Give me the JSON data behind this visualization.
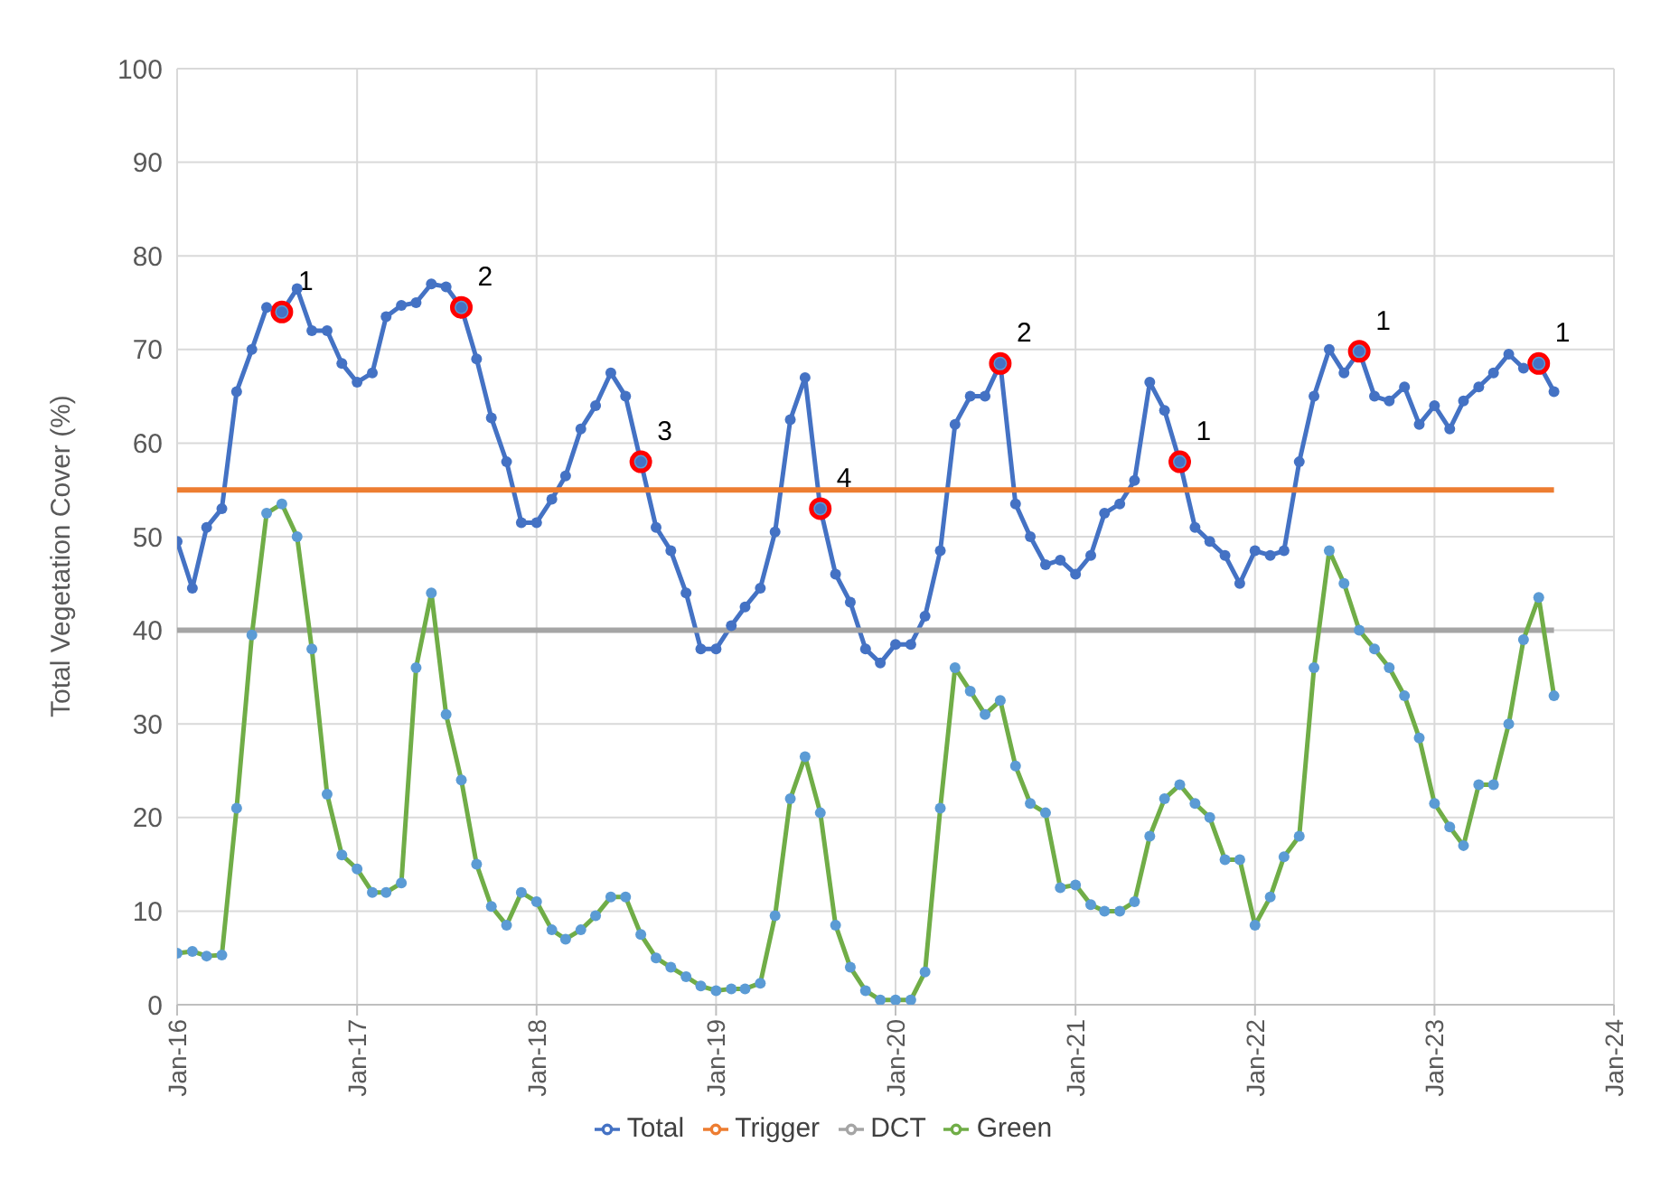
{
  "chart_data": {
    "type": "line",
    "ylabel": "Total Vegetation Cover (%)",
    "x": [
      "2016-01",
      "2016-02",
      "2016-03",
      "2016-04",
      "2016-05",
      "2016-06",
      "2016-07",
      "2016-08",
      "2016-09",
      "2016-10",
      "2016-11",
      "2016-12",
      "2017-01",
      "2017-02",
      "2017-03",
      "2017-04",
      "2017-05",
      "2017-06",
      "2017-07",
      "2017-08",
      "2017-09",
      "2017-10",
      "2017-11",
      "2017-12",
      "2018-01",
      "2018-02",
      "2018-03",
      "2018-04",
      "2018-05",
      "2018-06",
      "2018-07",
      "2018-08",
      "2018-09",
      "2018-10",
      "2018-11",
      "2018-12",
      "2019-01",
      "2019-02",
      "2019-03",
      "2019-04",
      "2019-05",
      "2019-06",
      "2019-07",
      "2019-08",
      "2019-09",
      "2019-10",
      "2019-11",
      "2019-12",
      "2020-01",
      "2020-02",
      "2020-03",
      "2020-04",
      "2020-05",
      "2020-06",
      "2020-07",
      "2020-08",
      "2020-09",
      "2020-10",
      "2020-11",
      "2020-12",
      "2021-01",
      "2021-02",
      "2021-03",
      "2021-04",
      "2021-05",
      "2021-06",
      "2021-07",
      "2021-08",
      "2021-09",
      "2021-10",
      "2021-11",
      "2021-12",
      "2022-01",
      "2022-02",
      "2022-03",
      "2022-04",
      "2022-05",
      "2022-06",
      "2022-07",
      "2022-08",
      "2022-09",
      "2022-10",
      "2022-11",
      "2022-12",
      "2023-01",
      "2023-02",
      "2023-03",
      "2023-04",
      "2023-05",
      "2023-06",
      "2023-07",
      "2023-08",
      "2023-09"
    ],
    "series": [
      {
        "name": "Total",
        "color": "#4472c4",
        "marker": "circle",
        "values": [
          49.5,
          44.5,
          51,
          53,
          65.5,
          70,
          74.5,
          74,
          76.5,
          72,
          72,
          68.5,
          66.5,
          67.5,
          73.5,
          74.7,
          75,
          77,
          76.7,
          74.5,
          69,
          62.7,
          58,
          51.5,
          51.5,
          54,
          56.5,
          61.5,
          64,
          67.5,
          65,
          58,
          51,
          48.5,
          44,
          38,
          38,
          40.5,
          42.5,
          44.5,
          50.5,
          62.5,
          67,
          53,
          46,
          43,
          38,
          36.5,
          38.5,
          38.5,
          41.5,
          48.5,
          62,
          65,
          65,
          68.5,
          53.5,
          50,
          47,
          47.5,
          46,
          48,
          52.5,
          53.5,
          56,
          66.5,
          63.5,
          58,
          51,
          49.5,
          48,
          45,
          48.5,
          48,
          48.5,
          58,
          65,
          70,
          67.5,
          69.8,
          65,
          64.5,
          66,
          62,
          64,
          61.5,
          64.5,
          66,
          67.5,
          69.5,
          68,
          68.5,
          65.5
        ]
      },
      {
        "name": "Trigger",
        "color": "#ed7d31",
        "marker": "none",
        "values": [
          55,
          55,
          55,
          55,
          55,
          55,
          55,
          55,
          55,
          55,
          55,
          55,
          55,
          55,
          55,
          55,
          55,
          55,
          55,
          55,
          55,
          55,
          55,
          55,
          55,
          55,
          55,
          55,
          55,
          55,
          55,
          55,
          55,
          55,
          55,
          55,
          55,
          55,
          55,
          55,
          55,
          55,
          55,
          55,
          55,
          55,
          55,
          55,
          55,
          55,
          55,
          55,
          55,
          55,
          55,
          55,
          55,
          55,
          55,
          55,
          55,
          55,
          55,
          55,
          55,
          55,
          55,
          55,
          55,
          55,
          55,
          55,
          55,
          55,
          55,
          55,
          55,
          55,
          55,
          55,
          55,
          55,
          55,
          55,
          55,
          55,
          55,
          55,
          55,
          55,
          55,
          55,
          55
        ]
      },
      {
        "name": "DCT",
        "color": "#a5a5a5",
        "marker": "none",
        "values": [
          40,
          40,
          40,
          40,
          40,
          40,
          40,
          40,
          40,
          40,
          40,
          40,
          40,
          40,
          40,
          40,
          40,
          40,
          40,
          40,
          40,
          40,
          40,
          40,
          40,
          40,
          40,
          40,
          40,
          40,
          40,
          40,
          40,
          40,
          40,
          40,
          40,
          40,
          40,
          40,
          40,
          40,
          40,
          40,
          40,
          40,
          40,
          40,
          40,
          40,
          40,
          40,
          40,
          40,
          40,
          40,
          40,
          40,
          40,
          40,
          40,
          40,
          40,
          40,
          40,
          40,
          40,
          40,
          40,
          40,
          40,
          40,
          40,
          40,
          40,
          40,
          40,
          40,
          40,
          40,
          40,
          40,
          40,
          40,
          40,
          40,
          40,
          40,
          40,
          40,
          40,
          40,
          40
        ]
      },
      {
        "name": "Green",
        "color": "#70ad47",
        "marker": "circle",
        "values": [
          5.5,
          5.7,
          5.2,
          5.3,
          21,
          39.5,
          52.5,
          53.5,
          50,
          38,
          22.5,
          16,
          14.5,
          12,
          12,
          13,
          36,
          44,
          31,
          24,
          15,
          10.5,
          8.5,
          12,
          11,
          8,
          7,
          8,
          9.5,
          11.5,
          11.5,
          7.5,
          5,
          4,
          3,
          2,
          1.5,
          1.7,
          1.7,
          2.3,
          9.5,
          22,
          26.5,
          20.5,
          8.5,
          4,
          1.5,
          0.5,
          0.5,
          0.5,
          3.5,
          21,
          36,
          33.5,
          31,
          32.5,
          25.5,
          21.5,
          20.5,
          12.5,
          12.8,
          10.7,
          10,
          10,
          11,
          18,
          22,
          23.5,
          21.5,
          20,
          15.5,
          15.5,
          8.5,
          11.5,
          15.8,
          18,
          36,
          48.5,
          45,
          40,
          38,
          36,
          33,
          28.5,
          21.5,
          19,
          17,
          23.5,
          23.5,
          30,
          39,
          43.5,
          33
        ]
      },
      {
        "type": "scatter",
        "color": "#ff0000",
        "marker": "circle",
        "x": [
          "2016-08",
          "2017-08",
          "2018-08",
          "2019-08",
          "2020-08",
          "2021-08",
          "2022-08",
          "2023-08"
        ],
        "values": [
          74,
          74.5,
          58,
          53,
          68.5,
          58,
          69.8,
          68.5
        ]
      }
    ],
    "annotations": [
      {
        "text": "1",
        "x": "2016-08",
        "y": 74
      },
      {
        "text": "2",
        "x": "2017-08",
        "y": 74.5
      },
      {
        "text": "3",
        "x": "2018-08",
        "y": 58
      },
      {
        "text": "4",
        "x": "2019-08",
        "y": 53
      },
      {
        "text": "2",
        "x": "2020-08",
        "y": 68.5
      },
      {
        "text": "1",
        "x": "2021-08",
        "y": 58
      },
      {
        "text": "1",
        "x": "2022-08",
        "y": 69.8
      },
      {
        "text": "1",
        "x": "2023-08",
        "y": 68.5
      }
    ],
    "xlim": [
      "2016-01",
      "2024-01"
    ],
    "xticks": [
      {
        "value": "2016-01",
        "label": "Jan-16"
      },
      {
        "value": "2017-01",
        "label": "Jan-17"
      },
      {
        "value": "2018-01",
        "label": "Jan-18"
      },
      {
        "value": "2019-01",
        "label": "Jan-19"
      },
      {
        "value": "2020-01",
        "label": "Jan-20"
      },
      {
        "value": "2021-01",
        "label": "Jan-21"
      },
      {
        "value": "2022-01",
        "label": "Jan-22"
      },
      {
        "value": "2023-01",
        "label": "Jan-23"
      },
      {
        "value": "2024-01",
        "label": "Jan-24"
      }
    ],
    "ylim": [
      0,
      100
    ],
    "yticks": [
      0,
      10,
      20,
      30,
      40,
      50,
      60,
      70,
      80,
      90,
      100
    ],
    "grid": true,
    "legend": "bottom"
  }
}
